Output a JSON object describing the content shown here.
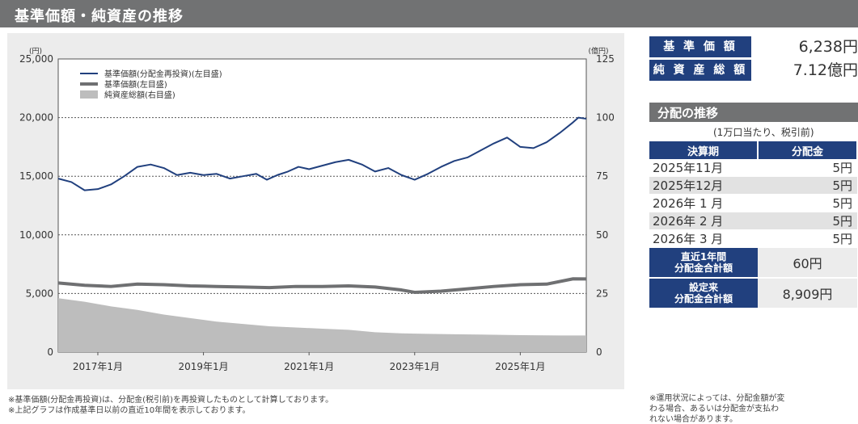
{
  "header": {
    "title": "基準価額・純資産の推移"
  },
  "chart_data": {
    "type": "line",
    "left_axis": {
      "unit_label": "(円)",
      "ticks": [
        "25,000",
        "20,000",
        "15,000",
        "10,000",
        "5,000",
        "0"
      ],
      "range": [
        0,
        25000
      ]
    },
    "right_axis": {
      "unit_label": "(億円)",
      "ticks": [
        "125",
        "100",
        "75",
        "50",
        "25",
        "0"
      ],
      "range": [
        0,
        125
      ]
    },
    "x_ticks": [
      {
        "label": "2017年1月",
        "x": 2017.0
      },
      {
        "label": "2019年1月",
        "x": 2019.0
      },
      {
        "label": "2021年1月",
        "x": 2021.0
      },
      {
        "label": "2023年1月",
        "x": 2023.0
      },
      {
        "label": "2025年1月",
        "x": 2025.0
      }
    ],
    "x_range": [
      2016.25,
      2026.25
    ],
    "grid": "dotted horizontal",
    "legend_position": "top-left",
    "series": [
      {
        "name": "基準価額(分配金再投資)(左目盛)",
        "axis": "left",
        "style": "line",
        "color": "#21407e",
        "x": [
          2016.25,
          2016.5,
          2016.75,
          2017.0,
          2017.25,
          2017.5,
          2017.75,
          2018.0,
          2018.25,
          2018.5,
          2018.75,
          2019.0,
          2019.25,
          2019.5,
          2019.75,
          2020.0,
          2020.2,
          2020.4,
          2020.6,
          2020.8,
          2021.0,
          2021.25,
          2021.5,
          2021.75,
          2022.0,
          2022.25,
          2022.5,
          2022.75,
          2023.0,
          2023.25,
          2023.5,
          2023.75,
          2024.0,
          2024.25,
          2024.5,
          2024.75,
          2025.0,
          2025.25,
          2025.5,
          2025.75,
          2026.0,
          2026.1,
          2026.25
        ],
        "y": [
          14800,
          14500,
          13800,
          13900,
          14300,
          15000,
          15800,
          16000,
          15700,
          15100,
          15300,
          15100,
          15200,
          14800,
          15000,
          15200,
          14700,
          15100,
          15400,
          15800,
          15600,
          15900,
          16200,
          16400,
          16000,
          15400,
          15700,
          15100,
          14700,
          15200,
          15800,
          16300,
          16600,
          17200,
          17800,
          18300,
          17500,
          17400,
          17900,
          18700,
          19600,
          20000,
          19900
        ]
      },
      {
        "name": "基準価額(左目盛)",
        "axis": "left",
        "style": "thick-line",
        "color": "#6f7072",
        "x": [
          2016.25,
          2016.75,
          2017.25,
          2017.75,
          2018.25,
          2018.75,
          2019.25,
          2019.75,
          2020.25,
          2020.75,
          2021.25,
          2021.75,
          2022.25,
          2022.75,
          2023.0,
          2023.5,
          2024.0,
          2024.5,
          2025.0,
          2025.5,
          2026.0,
          2026.25
        ],
        "y": [
          5900,
          5700,
          5600,
          5800,
          5750,
          5650,
          5600,
          5550,
          5500,
          5600,
          5600,
          5650,
          5550,
          5300,
          5100,
          5200,
          5400,
          5600,
          5750,
          5800,
          6250,
          6238
        ]
      },
      {
        "name": "純資産総額(右目盛)",
        "axis": "right",
        "style": "area",
        "color": "#bdbdbd",
        "x": [
          2016.25,
          2016.75,
          2017.25,
          2017.75,
          2018.25,
          2018.75,
          2019.25,
          2019.75,
          2020.25,
          2020.75,
          2021.25,
          2021.75,
          2022.25,
          2022.75,
          2023.25,
          2023.75,
          2024.25,
          2024.75,
          2025.25,
          2025.75,
          2026.25
        ],
        "y": [
          23.0,
          21.5,
          19.5,
          18.0,
          16.0,
          14.5,
          13.0,
          12.0,
          11.0,
          10.5,
          10.0,
          9.5,
          8.5,
          8.0,
          7.8,
          7.6,
          7.5,
          7.3,
          7.2,
          7.1,
          7.12
        ]
      }
    ]
  },
  "notes": [
    "※基準価額(分配金再投資)は、分配金(税引前)を再投資したものとして計算しております。",
    "※上記グラフは作成基準日以前の直近10年間を表示しております。"
  ],
  "summary": {
    "nav_label": "基 準 価 額",
    "nav_value": "6,238円",
    "assets_label": "純 資 産 総 額",
    "assets_value": "7.12億円"
  },
  "distribution": {
    "title": "分配の推移",
    "unit_note": "(1万口当たり、税引前)",
    "header_period": "決算期",
    "header_amount": "分配金",
    "rows": [
      {
        "period": "2025年11月",
        "amount": "5円"
      },
      {
        "period": "2025年12月",
        "amount": "5円"
      },
      {
        "period": "2026年 1 月",
        "amount": "5円"
      },
      {
        "period": "2026年 2 月",
        "amount": "5円"
      },
      {
        "period": "2026年 3 月",
        "amount": "5円"
      }
    ],
    "recent_total_label": [
      "直近1年間",
      "分配金合計額"
    ],
    "recent_total_value": "60円",
    "since_total_label": [
      "設定来",
      "分配金合計額"
    ],
    "since_total_value": "8,909円"
  },
  "side_notes": [
    "※運用状況によっては、分配金額が変",
    "わる場合、あるいは分配金が支払わ",
    "れない場合があります。"
  ]
}
